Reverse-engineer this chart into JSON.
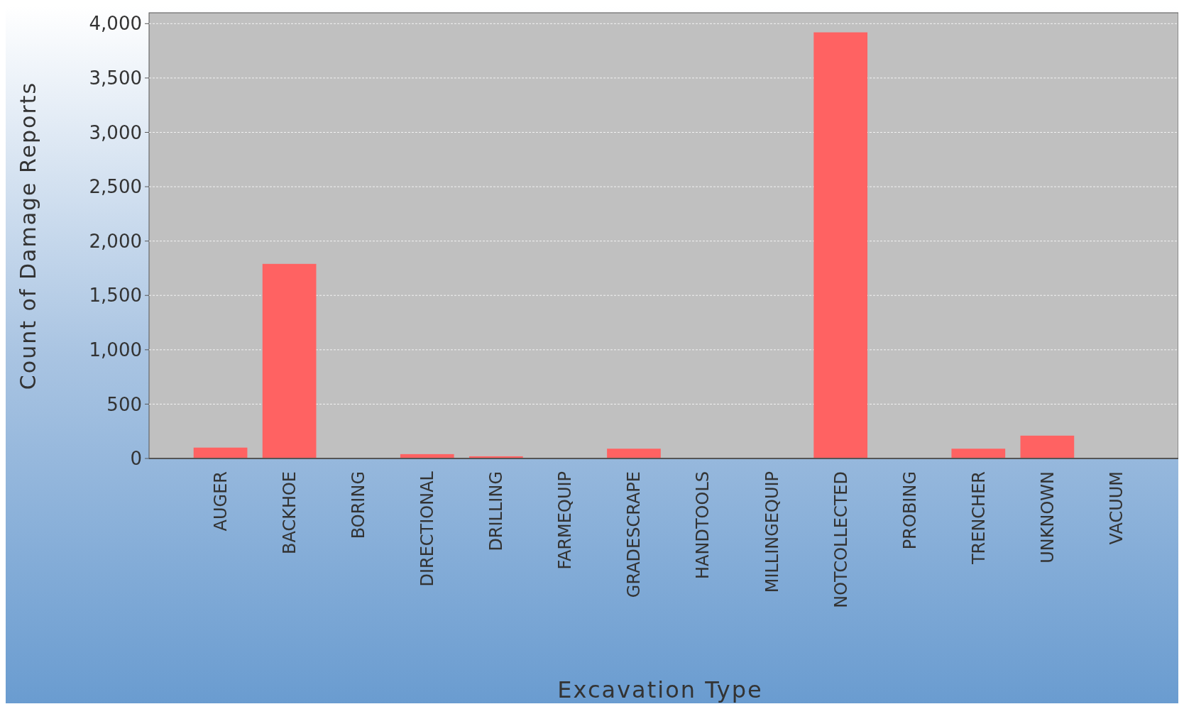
{
  "chart_data": {
    "type": "bar",
    "xlabel": "Excavation Type",
    "ylabel": "Count of Damage Reports",
    "categories": [
      "AUGER",
      "BACKHOE",
      "BORING",
      "DIRECTIONAL",
      "DRILLING",
      "FARMEQUIP",
      "GRADESCRAPE",
      "HANDTOOLS",
      "MILLINGEQUIP",
      "NOTCOLLECTED",
      "PROBING",
      "TRENCHER",
      "UNKNOWN",
      "VACUUM"
    ],
    "values": [
      100,
      1790,
      0,
      40,
      20,
      0,
      90,
      0,
      0,
      3920,
      0,
      90,
      210,
      0
    ],
    "color": "#ff6262",
    "ylim": [
      0,
      4100
    ],
    "yticks": [
      {
        "value": 0,
        "label": "0"
      },
      {
        "value": 500,
        "label": "500"
      },
      {
        "value": 1000,
        "label": "1,000"
      },
      {
        "value": 1500,
        "label": "1,500"
      },
      {
        "value": 2000,
        "label": "2,000"
      },
      {
        "value": 2500,
        "label": "2,500"
      },
      {
        "value": 3000,
        "label": "3,000"
      },
      {
        "value": 3500,
        "label": "3,500"
      },
      {
        "value": 4000,
        "label": "4,000"
      }
    ],
    "grid": "y"
  }
}
